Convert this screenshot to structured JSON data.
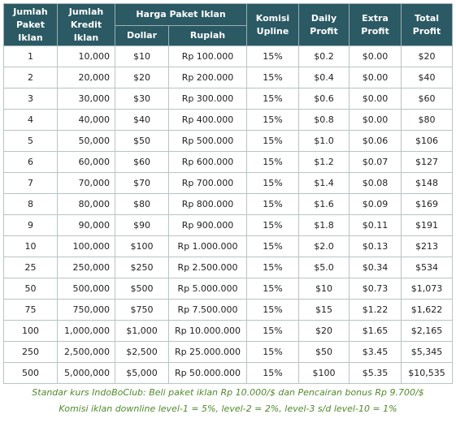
{
  "header": {
    "jumlah_paket": [
      "Jumlah",
      "Paket Iklan"
    ],
    "jumlah_kredit": [
      "Jumlah",
      "Kredit Iklan"
    ],
    "harga_paket": "Harga Paket Iklan",
    "dollar": "Dollar",
    "rupiah": "Rupiah",
    "komisi": [
      "Komisi",
      "Upline"
    ],
    "daily": [
      "Daily",
      "Profit"
    ],
    "extra": [
      "Extra",
      "Profit"
    ],
    "total": [
      "Total",
      "Profit"
    ]
  },
  "rows": [
    {
      "paket": "1",
      "kredit": "10,000",
      "dollar": "$10",
      "rupiah": "Rp 100.000",
      "komisi": "15%",
      "daily": "$0.2",
      "extra": "$0.00",
      "total": "$20"
    },
    {
      "paket": "2",
      "kredit": "20,000",
      "dollar": "$20",
      "rupiah": "Rp 200.000",
      "komisi": "15%",
      "daily": "$0.4",
      "extra": "$0.00",
      "total": "$40"
    },
    {
      "paket": "3",
      "kredit": "30,000",
      "dollar": "$30",
      "rupiah": "Rp 300.000",
      "komisi": "15%",
      "daily": "$0.6",
      "extra": "$0.00",
      "total": "$60"
    },
    {
      "paket": "4",
      "kredit": "40,000",
      "dollar": "$40",
      "rupiah": "Rp 400.000",
      "komisi": "15%",
      "daily": "$0.8",
      "extra": "$0.00",
      "total": "$80"
    },
    {
      "paket": "5",
      "kredit": "50,000",
      "dollar": "$50",
      "rupiah": "Rp 500.000",
      "komisi": "15%",
      "daily": "$1.0",
      "extra": "$0.06",
      "total": "$106"
    },
    {
      "paket": "6",
      "kredit": "60,000",
      "dollar": "$60",
      "rupiah": "Rp 600.000",
      "komisi": "15%",
      "daily": "$1.2",
      "extra": "$0.07",
      "total": "$127"
    },
    {
      "paket": "7",
      "kredit": "70,000",
      "dollar": "$70",
      "rupiah": "Rp 700.000",
      "komisi": "15%",
      "daily": "$1.4",
      "extra": "$0.08",
      "total": "$148"
    },
    {
      "paket": "8",
      "kredit": "80,000",
      "dollar": "$80",
      "rupiah": "Rp 800.000",
      "komisi": "15%",
      "daily": "$1.6",
      "extra": "$0.09",
      "total": "$169"
    },
    {
      "paket": "9",
      "kredit": "90,000",
      "dollar": "$90",
      "rupiah": "Rp 900.000",
      "komisi": "15%",
      "daily": "$1.8",
      "extra": "$0.11",
      "total": "$191"
    },
    {
      "paket": "10",
      "kredit": "100,000",
      "dollar": "$100",
      "rupiah": "Rp 1.000.000",
      "komisi": "15%",
      "daily": "$2.0",
      "extra": "$0.13",
      "total": "$213"
    },
    {
      "paket": "25",
      "kredit": "250,000",
      "dollar": "$250",
      "rupiah": "Rp 2.500.000",
      "komisi": "15%",
      "daily": "$5.0",
      "extra": "$0.34",
      "total": "$534"
    },
    {
      "paket": "50",
      "kredit": "500,000",
      "dollar": "$500",
      "rupiah": "Rp 5.000.000",
      "komisi": "15%",
      "daily": "$10",
      "extra": "$0.73",
      "total": "$1,073"
    },
    {
      "paket": "75",
      "kredit": "750,000",
      "dollar": "$750",
      "rupiah": "Rp 7.500.000",
      "komisi": "15%",
      "daily": "$15",
      "extra": "$1.22",
      "total": "$1,622"
    },
    {
      "paket": "100",
      "kredit": "1,000,000",
      "dollar": "$1,000",
      "rupiah": "Rp 10.000.000",
      "komisi": "15%",
      "daily": "$20",
      "extra": "$1.65",
      "total": "$2,165"
    },
    {
      "paket": "250",
      "kredit": "2,500,000",
      "dollar": "$2,500",
      "rupiah": "Rp 25.000.000",
      "komisi": "15%",
      "daily": "$50",
      "extra": "$3.45",
      "total": "$5,345"
    },
    {
      "paket": "500",
      "kredit": "5,000,000",
      "dollar": "$5,000",
      "rupiah": "Rp 50.000.000",
      "komisi": "15%",
      "daily": "$100",
      "extra": "$5.35",
      "total": "$10,535"
    }
  ],
  "notes": {
    "line1": "Standar kurs IndoBoClub: Beli paket iklan Rp 10.000/$ dan Pencairan bonus Rp 9.700/$",
    "line2": "Komisi iklan downline level-1 = 5%, level-2 = 2%, level-3 s/d level-10 = 1%"
  }
}
